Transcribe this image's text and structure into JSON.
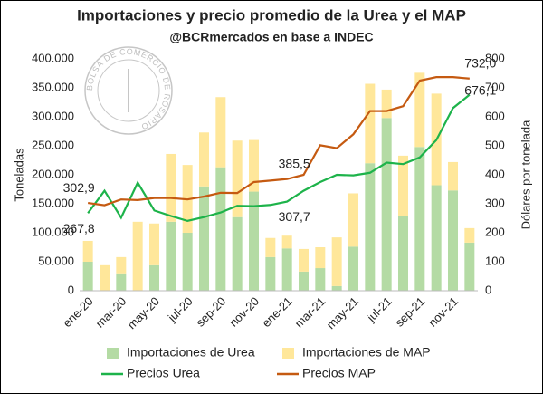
{
  "chart_data": {
    "type": "bar",
    "title": "Importaciones y precio promedio de la Urea y el MAP",
    "subtitle": "@BCRmercados en base a INDEC",
    "watermark": "BOLSA DE COMERCIO DE ROSARIO",
    "ylabel": "Toneladas",
    "y2label": "Dólares por tonelada",
    "categories": [
      "ene-20",
      null,
      "mar-20",
      null,
      "may-20",
      null,
      "jul-20",
      null,
      "sep-20",
      null,
      "nov-20",
      null,
      "ene-21",
      null,
      "mar-21",
      null,
      "may-21",
      null,
      "jul-21",
      null,
      "sep-21",
      null,
      "nov-21",
      null
    ],
    "ylim": [
      0,
      400000
    ],
    "yticks": [
      {
        "value": 0,
        "label": "0"
      },
      {
        "value": 50000,
        "label": "50.000"
      },
      {
        "value": 100000,
        "label": "100.000"
      },
      {
        "value": 150000,
        "label": "150.000"
      },
      {
        "value": 200000,
        "label": "200.000"
      },
      {
        "value": 250000,
        "label": "250.000"
      },
      {
        "value": 300000,
        "label": "300.000"
      },
      {
        "value": 350000,
        "label": "350.000"
      },
      {
        "value": 400000,
        "label": "400.000"
      }
    ],
    "y2lim": [
      0,
      800
    ],
    "y2ticks": [
      0,
      100,
      200,
      300,
      400,
      500,
      600,
      700,
      800
    ],
    "grid": false,
    "legend": "bottom",
    "series": [
      {
        "name": "Importaciones de Urea",
        "type": "bar",
        "color": "#b4dba4",
        "values": [
          50000,
          0,
          30000,
          0,
          44000,
          119000,
          100000,
          180000,
          213000,
          127000,
          171000,
          58000,
          73000,
          33000,
          39000,
          8000,
          76000,
          220000,
          298000,
          129000,
          248000,
          182000,
          173000,
          83000
        ]
      },
      {
        "name": "Importaciones de MAP",
        "type": "bar",
        "color": "#ffe79a",
        "values": [
          36000,
          44000,
          28000,
          119000,
          72000,
          117000,
          117000,
          93000,
          121000,
          132000,
          89000,
          33000,
          22000,
          39000,
          36000,
          84000,
          92000,
          137000,
          49000,
          104000,
          128000,
          158000,
          49000,
          25000
        ]
      },
      {
        "name": "Precios Urea",
        "type": "line",
        "axis": "y2",
        "color": "#1db34a",
        "values": [
          267.8,
          345,
          252,
          373,
          277,
          258,
          241,
          254,
          270,
          293,
          292,
          296,
          307.7,
          345,
          375,
          400,
          398,
          407,
          442,
          437,
          460,
          520,
          630,
          676.1
        ],
        "value_labels": [
          "267,8",
          null,
          null,
          null,
          null,
          null,
          null,
          null,
          null,
          null,
          null,
          null,
          "307,7",
          null,
          null,
          null,
          null,
          null,
          null,
          null,
          null,
          null,
          null,
          "676,1"
        ]
      },
      {
        "name": "Precios MAP",
        "type": "line",
        "axis": "y2",
        "color": "#c55a11",
        "values": [
          302.9,
          295,
          315,
          313,
          320,
          320,
          315,
          325,
          338,
          337,
          375,
          380,
          385.5,
          400,
          502,
          492,
          540,
          620,
          620,
          637,
          725,
          737,
          737,
          732.0
        ],
        "value_labels": [
          "302,9",
          null,
          null,
          null,
          null,
          null,
          null,
          null,
          null,
          null,
          null,
          null,
          "385,5",
          null,
          null,
          null,
          null,
          null,
          null,
          null,
          null,
          null,
          null,
          "732,0"
        ]
      }
    ]
  }
}
